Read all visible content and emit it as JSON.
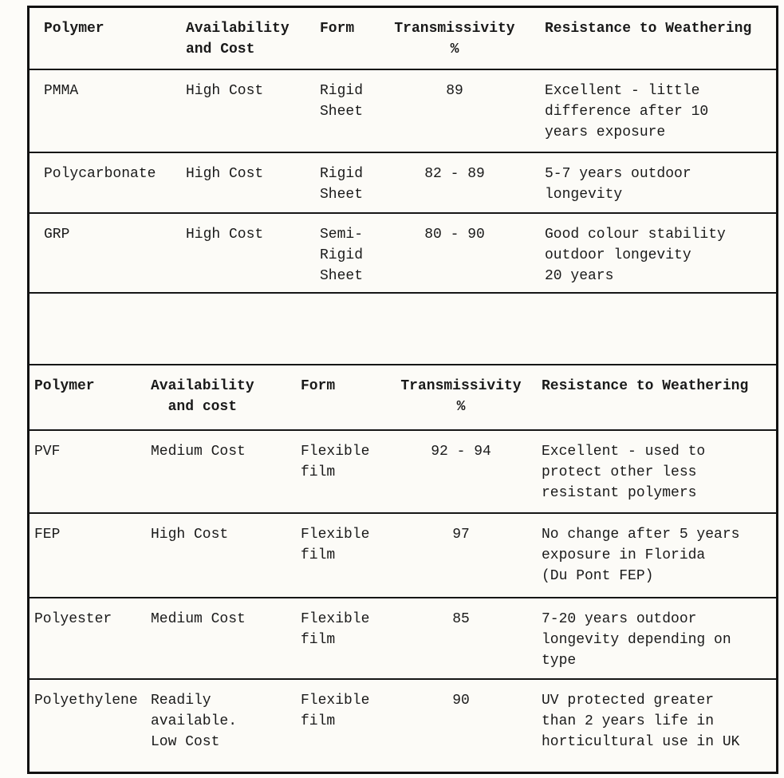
{
  "colors": {
    "paper": "#fcfbf7",
    "ink": "#1a1a1a",
    "rule_line": "#161616"
  },
  "table1": {
    "headers": {
      "polymer": "Polymer",
      "availability": "Availability\nand Cost",
      "form": "Form",
      "transmissivity": "Transmissivity\n%",
      "resistance": "Resistance to Weathering"
    },
    "rows": [
      {
        "polymer": "PMMA",
        "availability": "High Cost",
        "form": "Rigid\nSheet",
        "transmissivity": "89",
        "resistance": "Excellent - little\ndifference after 10\nyears exposure"
      },
      {
        "polymer": "Polycarbonate",
        "availability": "High Cost",
        "form": "Rigid\nSheet",
        "transmissivity": "82 - 89",
        "resistance": "5-7 years outdoor\nlongevity"
      },
      {
        "polymer": "GRP",
        "availability": "High Cost",
        "form": "Semi-\nRigid\nSheet",
        "transmissivity": "80 - 90",
        "resistance": "Good colour stability\noutdoor longevity\n20 years"
      }
    ]
  },
  "table2": {
    "headers": {
      "polymer": "Polymer",
      "availability": "Availability\n  and cost",
      "form": "Form",
      "transmissivity": "Transmissivity\n%",
      "resistance": "Resistance to Weathering"
    },
    "rows": [
      {
        "polymer": "PVF",
        "availability": "Medium Cost",
        "form": "Flexible\nfilm",
        "transmissivity": "92 - 94",
        "resistance": "Excellent - used to\nprotect other less\nresistant polymers"
      },
      {
        "polymer": "FEP",
        "availability": "High Cost",
        "form": "Flexible\nfilm",
        "transmissivity": "97",
        "resistance": "No change after 5 years\nexposure in Florida\n(Du Pont FEP)"
      },
      {
        "polymer": "Polyester",
        "availability": "Medium Cost",
        "form": "Flexible\nfilm",
        "transmissivity": "85",
        "resistance": "7-20 years outdoor\nlongevity depending on\ntype"
      },
      {
        "polymer": "Polyethylene",
        "availability": "Readily\navailable.\nLow Cost",
        "form": "Flexible\nfilm",
        "transmissivity": "90",
        "resistance": "UV protected greater\nthan 2 years life in\nhorticultural use in UK"
      }
    ]
  }
}
